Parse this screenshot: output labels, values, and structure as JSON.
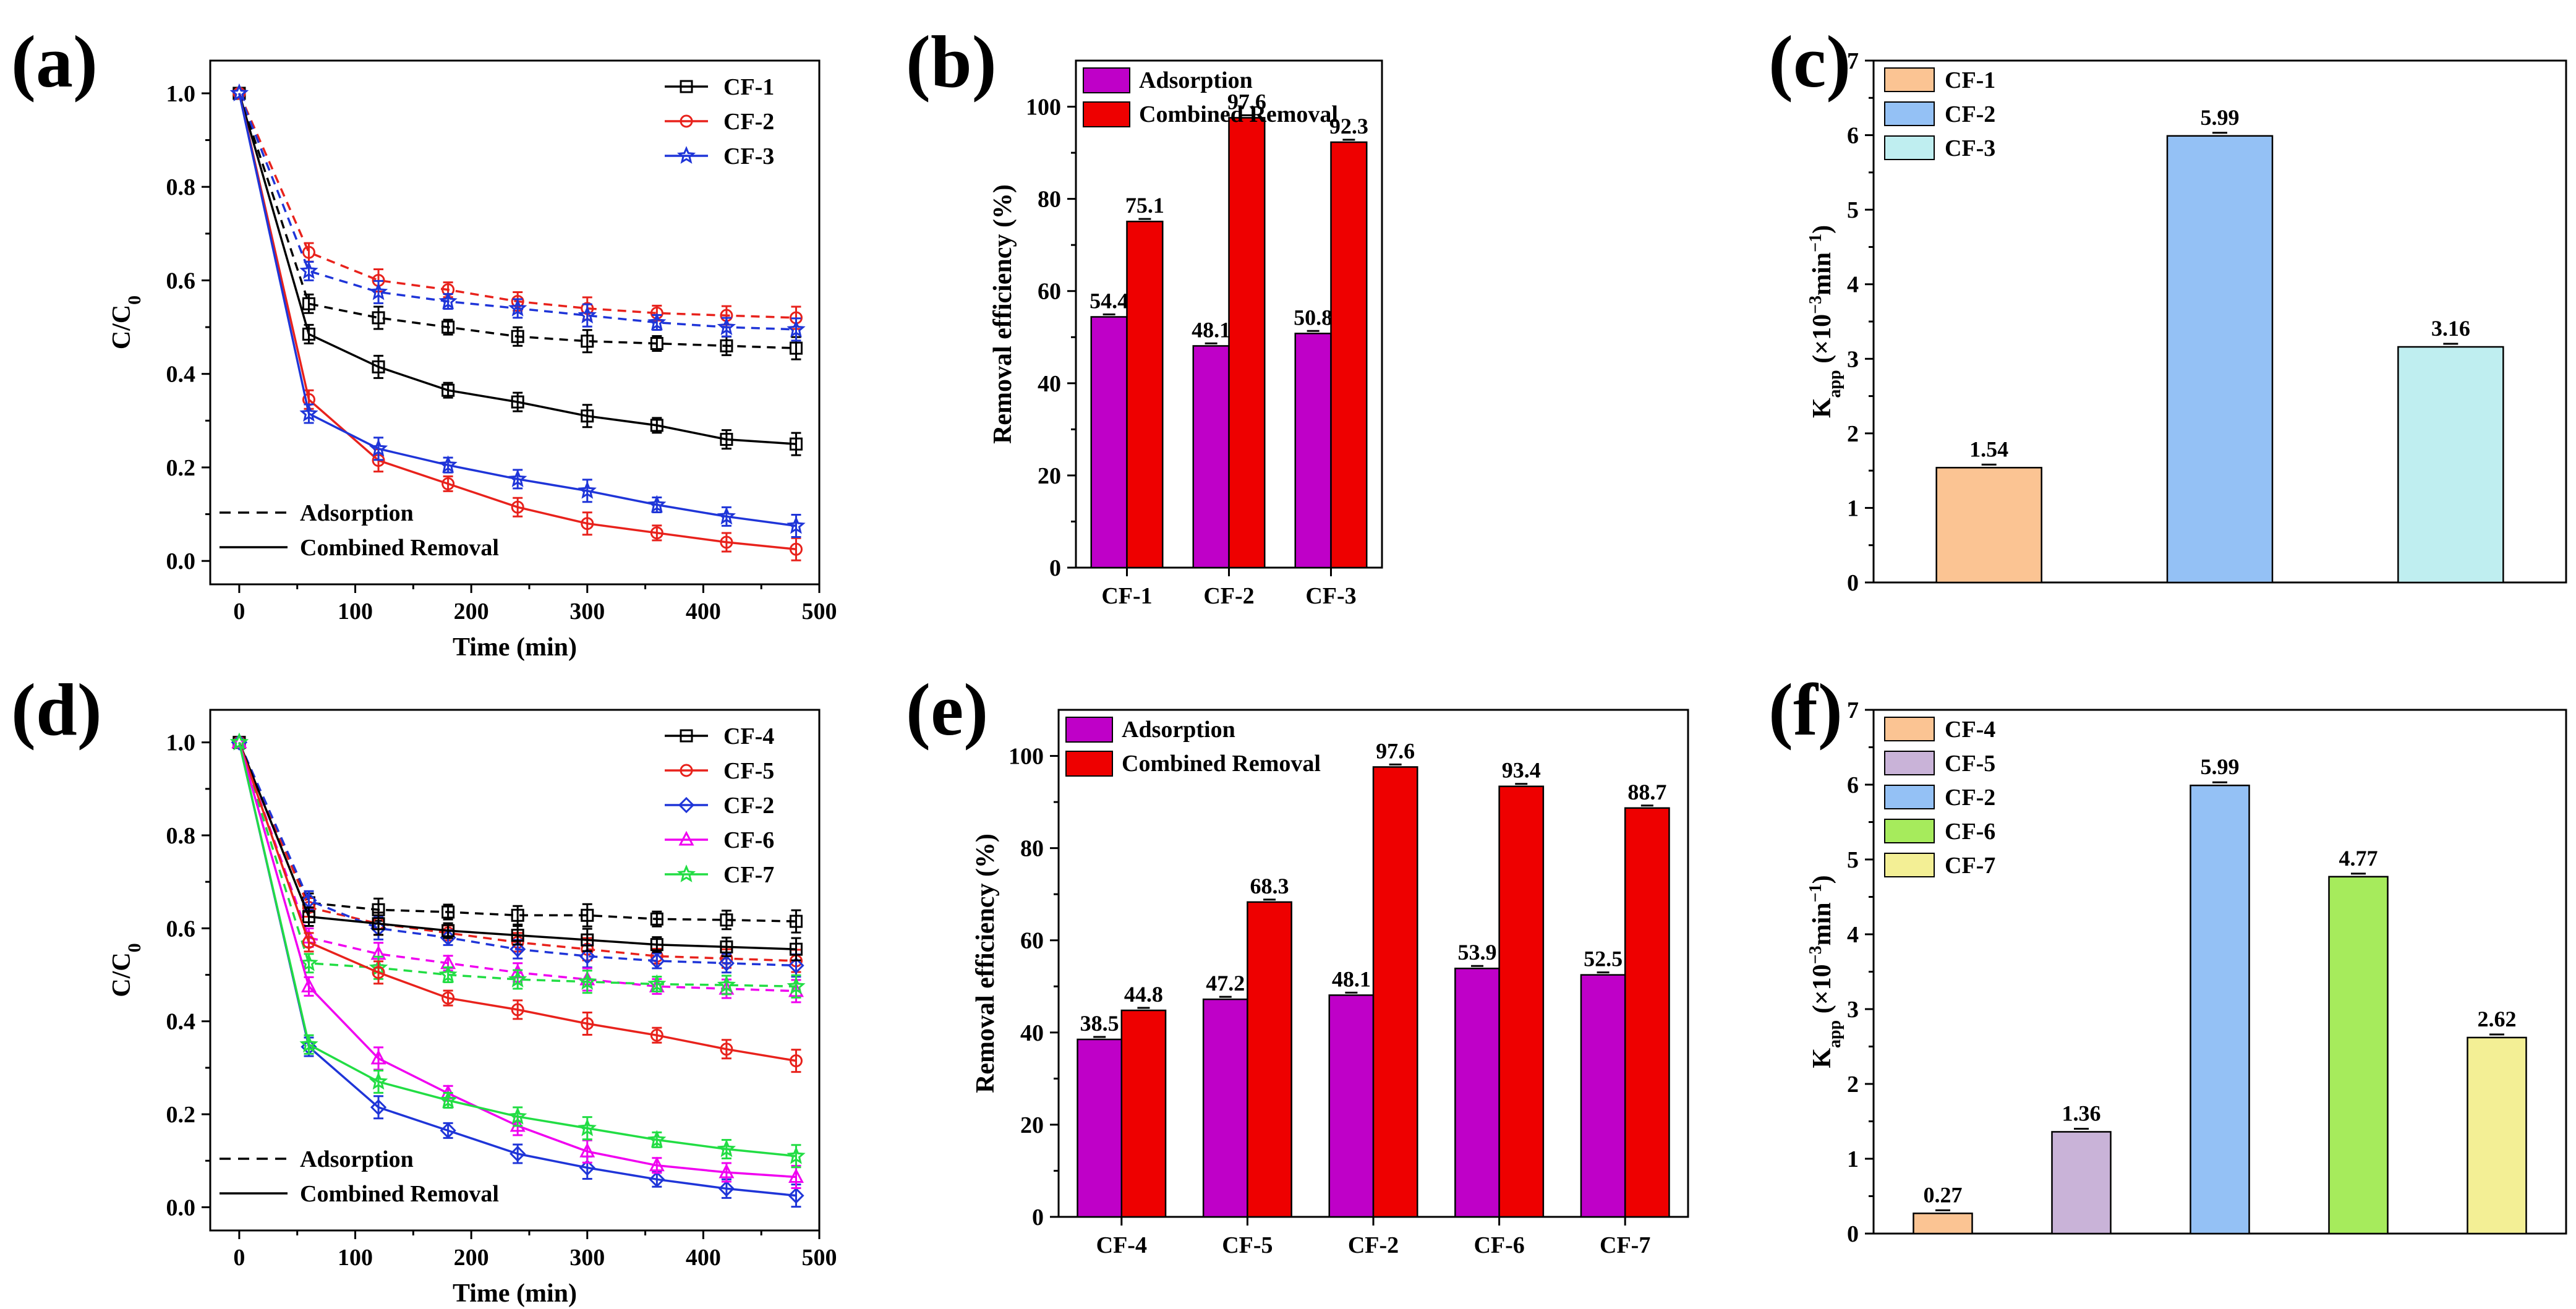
{
  "chart_data": [
    {
      "panel": "(a)",
      "type": "line",
      "xlabel": "Time (min)",
      "ylabel": "C/C0",
      "xlim": [
        -25,
        500
      ],
      "ylim": [
        -0.05,
        1.07
      ],
      "xticks": [
        0,
        100,
        200,
        300,
        400,
        500
      ],
      "yticks": [
        0.0,
        0.2,
        0.4,
        0.6,
        0.8,
        1.0
      ],
      "x": [
        0,
        60,
        120,
        180,
        240,
        300,
        360,
        420,
        480
      ],
      "series": [
        {
          "name": "CF-1",
          "color": "#000000",
          "marker": "square",
          "mode": "Adsorption",
          "values": [
            1.0,
            0.55,
            0.52,
            0.5,
            0.48,
            0.47,
            0.465,
            0.46,
            0.455
          ]
        },
        {
          "name": "CF-2",
          "color": "#e8221c",
          "marker": "circle",
          "mode": "Adsorption",
          "values": [
            1.0,
            0.66,
            0.6,
            0.58,
            0.555,
            0.54,
            0.53,
            0.525,
            0.52
          ]
        },
        {
          "name": "CF-3",
          "color": "#1f35d8",
          "marker": "star",
          "mode": "Adsorption",
          "values": [
            1.0,
            0.62,
            0.575,
            0.555,
            0.54,
            0.525,
            0.51,
            0.5,
            0.495
          ]
        },
        {
          "name": "CF-1",
          "color": "#000000",
          "marker": "square",
          "mode": "Combined Removal",
          "values": [
            1.0,
            0.485,
            0.415,
            0.365,
            0.34,
            0.31,
            0.29,
            0.26,
            0.25
          ]
        },
        {
          "name": "CF-2",
          "color": "#e8221c",
          "marker": "circle",
          "mode": "Combined Removal",
          "values": [
            1.0,
            0.345,
            0.215,
            0.165,
            0.115,
            0.08,
            0.06,
            0.04,
            0.025
          ]
        },
        {
          "name": "CF-3",
          "color": "#1f35d8",
          "marker": "star",
          "mode": "Combined Removal",
          "values": [
            1.0,
            0.315,
            0.24,
            0.205,
            0.175,
            0.15,
            0.12,
            0.095,
            0.075
          ]
        }
      ],
      "legend": {
        "entries": [
          "CF-1",
          "CF-2",
          "CF-3"
        ],
        "styles": [
          "Adsorption",
          "Combined Removal"
        ]
      }
    },
    {
      "panel": "(b)",
      "type": "bar",
      "ylabel": "Removal efficiency (%)",
      "ylim": [
        0,
        110
      ],
      "yticks": [
        0,
        20,
        40,
        60,
        80,
        100
      ],
      "categories": [
        "CF-1",
        "CF-2",
        "CF-3"
      ],
      "series": [
        {
          "name": "Adsorption",
          "color": "#bf00c8",
          "values": [
            54.4,
            48.1,
            50.8
          ]
        },
        {
          "name": "Combined Removal",
          "color": "#ee0000",
          "values": [
            75.1,
            97.6,
            92.3
          ]
        }
      ],
      "labels": [
        "54.4",
        "48.1",
        "50.8",
        "75.1",
        "97.6",
        "92.3"
      ]
    },
    {
      "panel": "(c)",
      "type": "bar",
      "ylabel": "Kapp (×10−3min−1)",
      "ylim": [
        0,
        7
      ],
      "yticks": [
        0,
        1,
        2,
        3,
        4,
        5,
        6,
        7
      ],
      "categories": [
        "CF-1",
        "CF-2",
        "CF-3"
      ],
      "colors": [
        "#fbc493",
        "#94c1f5",
        "#bfeef0"
      ],
      "values": [
        1.54,
        5.99,
        3.16
      ],
      "labels": [
        "1.54",
        "5.99",
        "3.16"
      ]
    },
    {
      "panel": "(d)",
      "type": "line",
      "xlabel": "Time (min)",
      "ylabel": "C/C0",
      "xlim": [
        -25,
        500
      ],
      "ylim": [
        -0.05,
        1.07
      ],
      "xticks": [
        0,
        100,
        200,
        300,
        400,
        500
      ],
      "yticks": [
        0.0,
        0.2,
        0.4,
        0.6,
        0.8,
        1.0
      ],
      "x": [
        0,
        60,
        120,
        180,
        240,
        300,
        360,
        420,
        480
      ],
      "series": [
        {
          "name": "CF-4",
          "color": "#000000",
          "marker": "square",
          "mode": "Adsorption",
          "values": [
            1.0,
            0.655,
            0.64,
            0.635,
            0.628,
            0.628,
            0.62,
            0.618,
            0.615
          ]
        },
        {
          "name": "CF-5",
          "color": "#e8221c",
          "marker": "circle",
          "mode": "Adsorption",
          "values": [
            1.0,
            0.645,
            0.61,
            0.59,
            0.57,
            0.555,
            0.54,
            0.535,
            0.53
          ]
        },
        {
          "name": "CF-2",
          "color": "#1f35d8",
          "marker": "diamond",
          "mode": "Adsorption",
          "values": [
            1.0,
            0.66,
            0.6,
            0.58,
            0.555,
            0.54,
            0.53,
            0.525,
            0.52
          ]
        },
        {
          "name": "CF-6",
          "color": "#f000f0",
          "marker": "triangle",
          "mode": "Adsorption",
          "values": [
            1.0,
            0.58,
            0.545,
            0.525,
            0.505,
            0.49,
            0.475,
            0.47,
            0.465
          ]
        },
        {
          "name": "CF-7",
          "color": "#22dd44",
          "marker": "star",
          "mode": "Adsorption",
          "values": [
            1.0,
            0.525,
            0.515,
            0.5,
            0.49,
            0.485,
            0.48,
            0.478,
            0.475
          ]
        },
        {
          "name": "CF-4",
          "color": "#000000",
          "marker": "square",
          "mode": "Combined Removal",
          "values": [
            1.0,
            0.625,
            0.61,
            0.595,
            0.585,
            0.575,
            0.565,
            0.56,
            0.555
          ]
        },
        {
          "name": "CF-5",
          "color": "#e8221c",
          "marker": "circle",
          "mode": "Combined Removal",
          "values": [
            1.0,
            0.57,
            0.505,
            0.45,
            0.425,
            0.395,
            0.37,
            0.34,
            0.315
          ]
        },
        {
          "name": "CF-2",
          "color": "#1f35d8",
          "marker": "diamond",
          "mode": "Combined Removal",
          "values": [
            1.0,
            0.345,
            0.215,
            0.165,
            0.115,
            0.085,
            0.06,
            0.04,
            0.025
          ]
        },
        {
          "name": "CF-6",
          "color": "#f000f0",
          "marker": "triangle",
          "mode": "Combined Removal",
          "values": [
            1.0,
            0.475,
            0.32,
            0.245,
            0.175,
            0.12,
            0.09,
            0.075,
            0.065
          ]
        },
        {
          "name": "CF-7",
          "color": "#22dd44",
          "marker": "star",
          "mode": "Combined Removal",
          "values": [
            1.0,
            0.35,
            0.27,
            0.23,
            0.195,
            0.17,
            0.145,
            0.125,
            0.11
          ]
        }
      ],
      "legend": {
        "entries": [
          "CF-4",
          "CF-5",
          "CF-2",
          "CF-6",
          "CF-7"
        ],
        "styles": [
          "Adsorption",
          "Combined Removal"
        ]
      }
    },
    {
      "panel": "(e)",
      "type": "bar",
      "ylabel": "Removal efficiency (%)",
      "ylim": [
        0,
        110
      ],
      "yticks": [
        0,
        20,
        40,
        60,
        80,
        100
      ],
      "categories": [
        "CF-4",
        "CF-5",
        "CF-2",
        "CF-6",
        "CF-7"
      ],
      "series": [
        {
          "name": "Adsorption",
          "color": "#bf00c8",
          "values": [
            38.5,
            47.2,
            48.1,
            53.9,
            52.5
          ]
        },
        {
          "name": "Combined Removal",
          "color": "#ee0000",
          "values": [
            44.8,
            68.3,
            97.6,
            93.4,
            88.7
          ]
        }
      ],
      "labels": [
        "38.5",
        "47.2",
        "48.1",
        "53.9",
        "52.5",
        "44.8",
        "68.3",
        "97.6",
        "93.4",
        "88.7"
      ]
    },
    {
      "panel": "(f)",
      "type": "bar",
      "ylabel": "Kapp (×10−3min−1)",
      "ylim": [
        0,
        7
      ],
      "yticks": [
        0,
        1,
        2,
        3,
        4,
        5,
        6,
        7
      ],
      "categories": [
        "CF-4",
        "CF-5",
        "CF-2",
        "CF-6",
        "CF-7"
      ],
      "colors": [
        "#fbc493",
        "#c9b3d8",
        "#94c1f5",
        "#a6eb5c",
        "#f3ef95"
      ],
      "values": [
        0.27,
        1.36,
        5.99,
        4.77,
        2.62
      ],
      "labels": [
        "0.27",
        "1.36",
        "5.99",
        "4.77",
        "2.62"
      ]
    }
  ]
}
